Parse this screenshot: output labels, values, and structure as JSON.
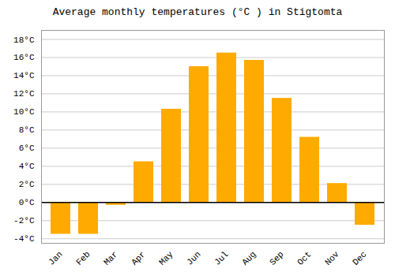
{
  "chart_data": {
    "type": "bar",
    "title": "Average monthly temperatures (°C ) in Stigtomta",
    "categories": [
      "Jan",
      "Feb",
      "Mar",
      "Apr",
      "May",
      "Jun",
      "Jul",
      "Aug",
      "Sep",
      "Oct",
      "Nov",
      "Dec"
    ],
    "values": [
      -3.5,
      -3.5,
      -0.3,
      4.5,
      10.3,
      15.0,
      16.5,
      15.7,
      11.5,
      7.2,
      2.1,
      -2.5
    ],
    "color": "#FFAA00",
    "ylim": [
      -4.5,
      19.0
    ],
    "yticks": [
      {
        "value": -4,
        "label": "-4°C"
      },
      {
        "value": -2,
        "label": "-2°C"
      },
      {
        "value": 0,
        "label": "0°C"
      },
      {
        "value": 2,
        "label": "2°C"
      },
      {
        "value": 4,
        "label": "4°C"
      },
      {
        "value": 6,
        "label": "6°C"
      },
      {
        "value": 8,
        "label": "8°C"
      },
      {
        "value": 10,
        "label": "10°C"
      },
      {
        "value": 12,
        "label": "12°C"
      },
      {
        "value": 14,
        "label": "14°C"
      },
      {
        "value": 16,
        "label": "16°C"
      },
      {
        "value": 18,
        "label": "18°C"
      }
    ],
    "grid": true
  }
}
